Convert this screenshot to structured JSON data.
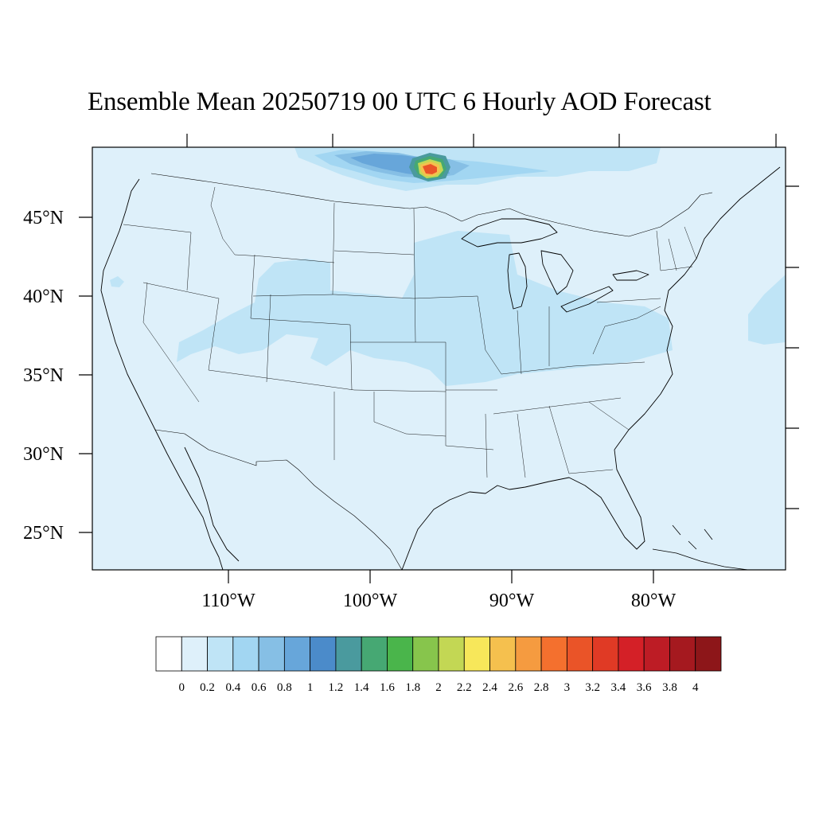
{
  "title": "Ensemble Mean 20250719 00 UTC 6 Hourly AOD Forecast",
  "map": {
    "projection": "lambert-conformal",
    "region": "Contiguous United States",
    "background_fill": "#def0fa",
    "coastline_color": "#000000"
  },
  "axes": {
    "lat_labels": [
      "45°N",
      "40°N",
      "35°N",
      "30°N",
      "25°N"
    ],
    "lon_labels": [
      "110°W",
      "100°W",
      "90°W",
      "80°W"
    ]
  },
  "colorbar": {
    "labels": [
      "0",
      "0.2",
      "0.4",
      "0.6",
      "0.8",
      "1",
      "1.2",
      "1.4",
      "1.6",
      "1.8",
      "2",
      "2.2",
      "2.4",
      "2.6",
      "2.8",
      "3",
      "3.2",
      "3.4",
      "3.6",
      "3.8",
      "4"
    ],
    "colors": [
      "#ffffff",
      "#def0fa",
      "#bfe4f6",
      "#a2d6f2",
      "#86bfe5",
      "#67a6da",
      "#4b8bca",
      "#4a9a9e",
      "#46a873",
      "#4ab54b",
      "#87c54c",
      "#c3d754",
      "#f7e75a",
      "#f5c04e",
      "#f59b40",
      "#f4702e",
      "#ea5428",
      "#e03a25",
      "#d42027",
      "#bd1c25",
      "#a5191f",
      "#8d1619"
    ]
  },
  "chart_data": {
    "type": "heatmap",
    "title": "Ensemble Mean 20250719 00 UTC 6 Hourly AOD Forecast",
    "variable": "AOD",
    "lon_ticks": [
      -110,
      -100,
      -90,
      -80
    ],
    "lat_ticks": [
      45,
      40,
      35,
      30,
      25
    ],
    "levels": [
      0,
      0.2,
      0.4,
      0.6,
      0.8,
      1,
      1.2,
      1.4,
      1.6,
      1.8,
      2,
      2.2,
      2.4,
      2.6,
      2.8,
      3,
      3.2,
      3.4,
      3.6,
      3.8,
      4
    ],
    "regions": [
      {
        "name": "domain background",
        "aod_range": [
          0.2,
          0.4
        ]
      },
      {
        "name": "central plains / midwest band",
        "aod_range": [
          0.4,
          0.6
        ]
      },
      {
        "name": "northern Minnesota / Ontario border plume",
        "aod_range": [
          0.6,
          1.6
        ]
      },
      {
        "name": "smoke plume core near 48N 95W",
        "aod_range": [
          2.4,
          3.4
        ]
      },
      {
        "name": "western Atlantic offshore",
        "aod_range": [
          0.4,
          0.6
        ]
      }
    ]
  }
}
